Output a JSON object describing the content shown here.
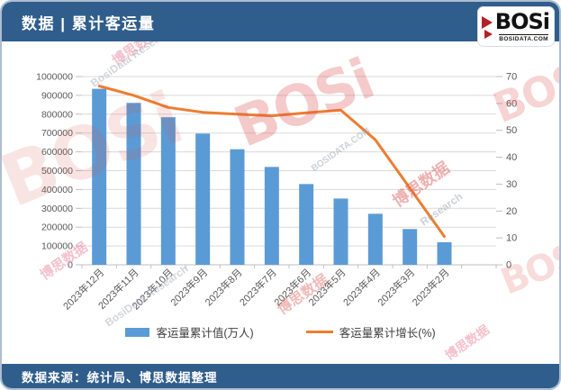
{
  "header": {
    "title": "数据 | 累计客运量"
  },
  "logo": {
    "text": "BOSi",
    "subtext": "BOSIDATA.COM"
  },
  "footer": {
    "text": "数据来源：统计局、博思数据整理"
  },
  "colors": {
    "header_bg": "#305e8c",
    "bar": "#5b9bd5",
    "line": "#ed7d31",
    "grid": "#dadada",
    "axis_line": "#bfbfbf",
    "axis_text": "#595959",
    "watermark_red": "#d9534f",
    "watermark_pink": "#e8849b",
    "watermark_gray": "#9aa5ae"
  },
  "watermarks": [
    {
      "text": "博思数据",
      "tone": "pink"
    },
    {
      "text": "BosiData Research",
      "tone": "gray"
    },
    {
      "text": "BOSi",
      "tone": "red"
    },
    {
      "text": "BosiData Research",
      "tone": "gray"
    },
    {
      "text": "博思数据",
      "tone": "pink"
    },
    {
      "text": "BOSi",
      "tone": "red"
    },
    {
      "text": "BOSIDATA.COM",
      "tone": "gray"
    },
    {
      "text": "博思数据",
      "tone": "red"
    },
    {
      "text": "Research",
      "tone": "gray"
    },
    {
      "text": "BOSi",
      "tone": "red"
    },
    {
      "text": "BOSi",
      "tone": "red"
    },
    {
      "text": "博思数据",
      "tone": "pink"
    },
    {
      "text": "BosiData Research",
      "tone": "gray"
    },
    {
      "text": "博思数据",
      "tone": "red"
    },
    {
      "text": "博思数据",
      "tone": "pink"
    }
  ],
  "chart_data": {
    "type": "bar",
    "title": "累计客运量",
    "categories": [
      "2023年12月",
      "2023年11月",
      "2023年10月",
      "2023年9月",
      "2023年8月",
      "2023年7月",
      "2023年6月",
      "2023年5月",
      "2023年4月",
      "2023年3月",
      "2023年2月"
    ],
    "series": [
      {
        "name": "客运量累计值(万人)",
        "type": "bar",
        "axis": "left",
        "color": "#5b9bd5",
        "values": [
          935000,
          860000,
          784000,
          697000,
          614000,
          520000,
          429000,
          352000,
          271000,
          190000,
          120000
        ]
      },
      {
        "name": "客运量累计增长(%)",
        "type": "line",
        "axis": "right",
        "color": "#ed7d31",
        "values": [
          66.5,
          63,
          58.5,
          56.7,
          56,
          55.4,
          56.5,
          57.5,
          46.5,
          28.5,
          10.5
        ]
      }
    ],
    "left_axis": {
      "min": 0,
      "max": 1000000,
      "step": 100000,
      "tick_labels": [
        "0",
        "100000",
        "200000",
        "300000",
        "400000",
        "500000",
        "600000",
        "700000",
        "800000",
        "900000",
        "1000000"
      ]
    },
    "right_axis": {
      "min": 0,
      "max": 70,
      "step": 10,
      "tick_labels": [
        "0",
        "10",
        "20",
        "30",
        "40",
        "50",
        "60",
        "70"
      ]
    },
    "grid": true,
    "legend_position": "bottom"
  }
}
